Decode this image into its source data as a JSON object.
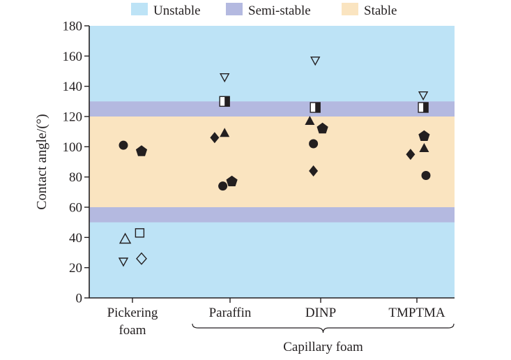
{
  "chart_data": {
    "type": "scatter",
    "ylabel": "Contact angle/(°)",
    "ylim": [
      0,
      180
    ],
    "yticks": [
      0,
      20,
      40,
      60,
      80,
      100,
      120,
      140,
      160,
      180
    ],
    "categories": [
      {
        "lines": [
          "Pickering",
          "foam"
        ]
      },
      {
        "lines": [
          "Paraffin"
        ]
      },
      {
        "lines": [
          "DINP"
        ]
      },
      {
        "lines": [
          "TMPTMA"
        ]
      }
    ],
    "group_label": "Capillary foam",
    "legend_position": "top",
    "bands": [
      {
        "label": "Unstable",
        "color": "#bde3f6",
        "ranges": [
          [
            0,
            180
          ]
        ]
      },
      {
        "label": "Semi-stable",
        "color": "#b4b9e0",
        "ranges": [
          [
            50,
            60
          ],
          [
            120,
            130
          ]
        ]
      },
      {
        "label": "Stable",
        "color": "#fae4c0",
        "ranges": [
          [
            60,
            120
          ]
        ]
      }
    ],
    "points": [
      {
        "category": 0,
        "offset": -0.1,
        "y": 101,
        "marker": "circle"
      },
      {
        "category": 0,
        "offset": 0.1,
        "y": 97,
        "marker": "pentagon"
      },
      {
        "category": 0,
        "offset": -0.08,
        "y": 39,
        "marker": "triangle-up-open"
      },
      {
        "category": 0,
        "offset": 0.08,
        "y": 43,
        "marker": "square-open"
      },
      {
        "category": 0,
        "offset": -0.1,
        "y": 24,
        "marker": "triangle-down-open"
      },
      {
        "category": 0,
        "offset": 0.1,
        "y": 26,
        "marker": "diamond-open"
      },
      {
        "category": 1,
        "offset": -0.17,
        "y": 106,
        "marker": "diamond"
      },
      {
        "category": 1,
        "offset": -0.06,
        "y": 109,
        "marker": "triangle-up"
      },
      {
        "category": 1,
        "offset": -0.06,
        "y": 146,
        "marker": "triangle-down-open"
      },
      {
        "category": 1,
        "offset": -0.06,
        "y": 130,
        "marker": "square-half"
      },
      {
        "category": 1,
        "offset": -0.08,
        "y": 74,
        "marker": "circle"
      },
      {
        "category": 1,
        "offset": 0.02,
        "y": 77,
        "marker": "pentagon"
      },
      {
        "category": 2,
        "offset": -0.06,
        "y": 157,
        "marker": "triangle-down-open"
      },
      {
        "category": 2,
        "offset": -0.06,
        "y": 126,
        "marker": "square-half"
      },
      {
        "category": 2,
        "offset": -0.12,
        "y": 117,
        "marker": "triangle-up"
      },
      {
        "category": 2,
        "offset": 0.02,
        "y": 112,
        "marker": "pentagon"
      },
      {
        "category": 2,
        "offset": -0.08,
        "y": 102,
        "marker": "circle"
      },
      {
        "category": 2,
        "offset": -0.08,
        "y": 84,
        "marker": "diamond"
      },
      {
        "category": 3,
        "offset": 0.07,
        "y": 134,
        "marker": "triangle-down-open"
      },
      {
        "category": 3,
        "offset": 0.07,
        "y": 126,
        "marker": "square-half"
      },
      {
        "category": 3,
        "offset": 0.08,
        "y": 107,
        "marker": "pentagon"
      },
      {
        "category": 3,
        "offset": 0.08,
        "y": 99,
        "marker": "triangle-up"
      },
      {
        "category": 3,
        "offset": -0.07,
        "y": 95,
        "marker": "diamond"
      },
      {
        "category": 3,
        "offset": 0.1,
        "y": 81,
        "marker": "circle"
      }
    ]
  }
}
